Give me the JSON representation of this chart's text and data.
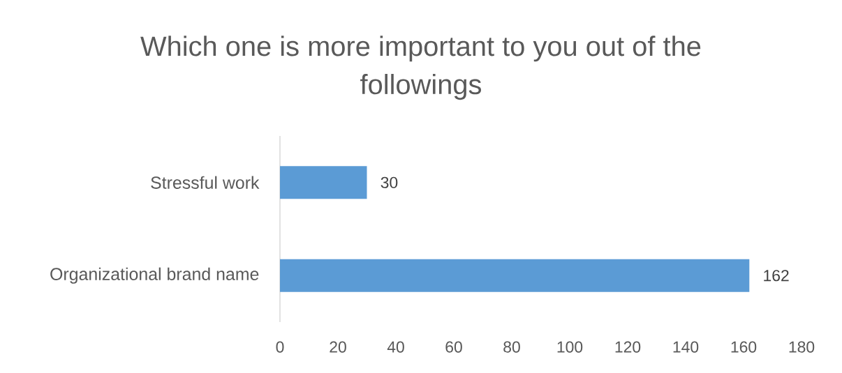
{
  "chart_data": {
    "type": "bar",
    "orientation": "horizontal",
    "title": "Which one is more important to you out of the followings",
    "categories": [
      "Stressful work",
      "Organizational brand name"
    ],
    "values": [
      30,
      162
    ],
    "color": "#5b9bd5",
    "xlim": [
      0,
      180
    ],
    "xticks": [
      0,
      20,
      40,
      60,
      80,
      100,
      120,
      140,
      160,
      180
    ],
    "data_labels": true
  }
}
